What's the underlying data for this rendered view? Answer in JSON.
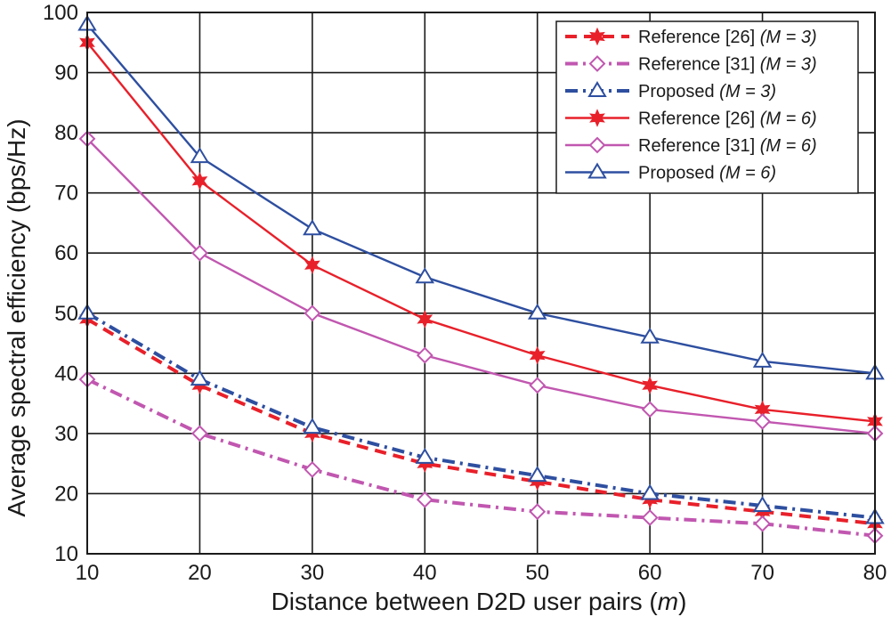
{
  "chart_data": {
    "type": "line",
    "xlabel": "Distance between D2D user pairs",
    "xlabel_unit": "m",
    "ylabel": "Average spectral efficiency (bps/Hz)",
    "xlim": [
      10,
      80
    ],
    "ylim": [
      10,
      100
    ],
    "x_ticks": [
      10,
      20,
      30,
      40,
      50,
      60,
      70,
      80
    ],
    "y_ticks": [
      10,
      20,
      30,
      40,
      50,
      60,
      70,
      80,
      90,
      100
    ],
    "grid": true,
    "legend_position": "top-right",
    "x": [
      10,
      20,
      30,
      40,
      50,
      60,
      70,
      80
    ],
    "series": [
      {
        "name": "Reference [26]",
        "param": "(M = 3)",
        "color": "#e8202a",
        "dash": "dashed",
        "marker": "star",
        "values": [
          49,
          38,
          30,
          25,
          22,
          19,
          17,
          15
        ]
      },
      {
        "name": "Reference [31]",
        "param": "(M = 3)",
        "color": "#c157b0",
        "dash": "dashdot",
        "marker": "diamond",
        "values": [
          39,
          30,
          24,
          19,
          17,
          16,
          15,
          13
        ]
      },
      {
        "name": "Proposed",
        "param": "(M = 3)",
        "color": "#2e4fa0",
        "dash": "dashdot",
        "marker": "triangle",
        "values": [
          50,
          39,
          31,
          26,
          23,
          20,
          18,
          16
        ]
      },
      {
        "name": "Reference [26]",
        "param": "(M = 6)",
        "color": "#e8202a",
        "dash": "solid",
        "marker": "star",
        "values": [
          95,
          72,
          58,
          49,
          43,
          38,
          34,
          32
        ]
      },
      {
        "name": "Reference [31]",
        "param": "(M = 6)",
        "color": "#c157b0",
        "dash": "solid",
        "marker": "diamond",
        "values": [
          79,
          60,
          50,
          43,
          38,
          34,
          32,
          30
        ]
      },
      {
        "name": "Proposed",
        "param": "(M = 6)",
        "color": "#2e4fa0",
        "dash": "solid",
        "marker": "triangle",
        "values": [
          98,
          76,
          64,
          56,
          50,
          46,
          42,
          40
        ]
      }
    ]
  }
}
